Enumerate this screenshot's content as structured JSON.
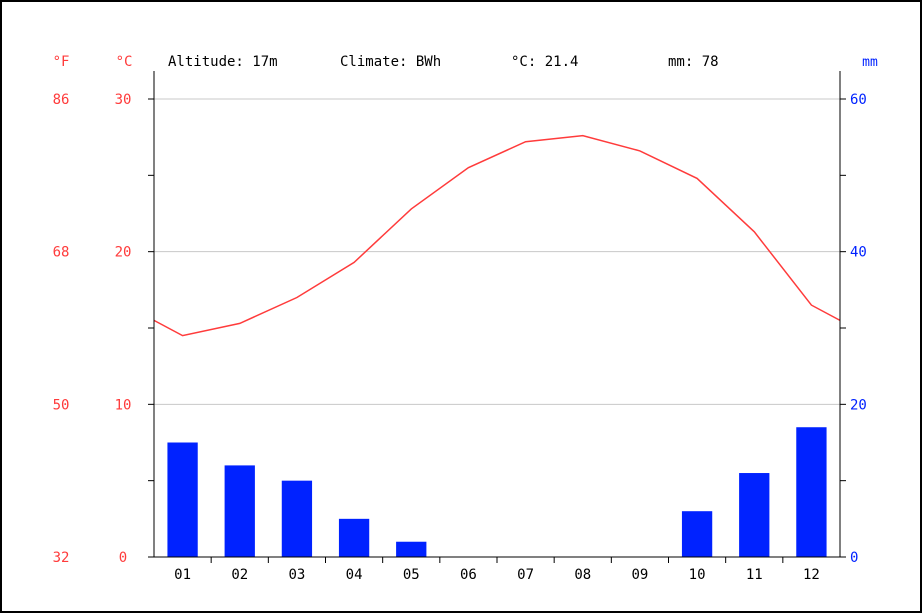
{
  "header": {
    "unit_f": "°F",
    "unit_c": "°C",
    "altitude": "Altitude: 17m",
    "climate": "Climate: BWh",
    "mean_temp": "°C: 21.4",
    "total_precip": "mm: 78",
    "unit_mm": "mm"
  },
  "colors": {
    "temperature": "#ff3b3b",
    "precipitation": "#0022ff",
    "grid": "#c8c8c8",
    "axis": "#000000"
  },
  "chart_data": {
    "type": "bar",
    "categories": [
      "01",
      "02",
      "03",
      "04",
      "05",
      "06",
      "07",
      "08",
      "09",
      "10",
      "11",
      "12"
    ],
    "series": [
      {
        "name": "mm",
        "type": "bar",
        "axis": "right",
        "values": [
          15,
          12,
          10,
          5,
          2,
          0,
          0,
          0,
          0,
          6,
          11,
          17
        ]
      },
      {
        "name": "°C",
        "type": "line",
        "axis": "left",
        "values": [
          14.5,
          15.3,
          17.0,
          19.3,
          22.8,
          25.5,
          27.2,
          27.6,
          26.6,
          24.8,
          21.3,
          16.5
        ],
        "edge_values": [
          15.5,
          15.5
        ]
      }
    ],
    "y_left": {
      "label": "°C",
      "ylim": [
        0,
        30
      ],
      "ticks": [
        0,
        10,
        20,
        30
      ],
      "minor_ticks": [
        5,
        15,
        25
      ]
    },
    "y_far_left": {
      "label": "°F",
      "ticks": [
        32,
        50,
        68,
        86
      ]
    },
    "y_right": {
      "label": "mm",
      "ylim": [
        0,
        60
      ],
      "ticks": [
        0,
        20,
        40,
        60
      ],
      "minor_ticks": [
        10,
        30,
        50
      ]
    },
    "grid": true
  }
}
